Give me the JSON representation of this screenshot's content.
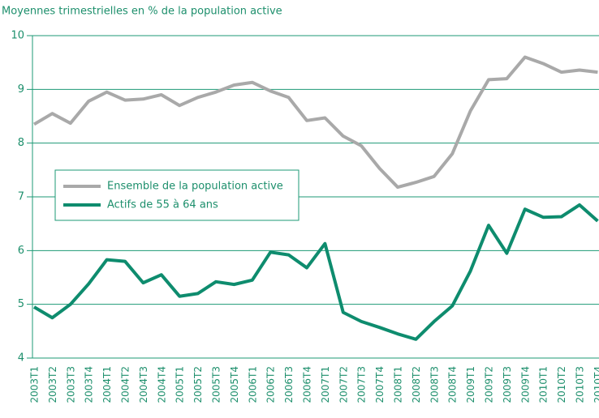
{
  "chart_data": {
    "type": "line",
    "title": "Moyennes trimestrielles en % de la population active",
    "categories": [
      "2003T1",
      "2003T2",
      "2003T3",
      "2003T4",
      "2004T1",
      "2004T2",
      "2004T3",
      "2004T4",
      "2005T1",
      "2005T2",
      "2005T3",
      "2005T4",
      "2006T1",
      "2006T2",
      "2006T3",
      "2006T4",
      "2007T1",
      "2007T2",
      "2007T3",
      "2007T4",
      "2008T1",
      "2008T2",
      "2008T3",
      "2008T4",
      "2009T1",
      "2009T2",
      "2009T3",
      "2009T4",
      "2010T1",
      "2010T2",
      "2010T3",
      "2010T4"
    ],
    "series": [
      {
        "name": "Ensemble de la population active",
        "color": "#a9a9a9",
        "values": [
          8.35,
          8.55,
          8.37,
          8.78,
          8.95,
          8.8,
          8.82,
          8.9,
          8.7,
          8.85,
          8.95,
          9.08,
          9.13,
          8.97,
          8.85,
          8.42,
          8.47,
          8.13,
          7.95,
          7.53,
          7.18,
          7.27,
          7.38,
          7.8,
          8.6,
          9.18,
          9.2,
          9.6,
          9.48,
          9.32,
          9.36,
          9.32
        ]
      },
      {
        "name": "Actifs de 55 à 64 ans",
        "color": "#0e8c6e",
        "values": [
          4.95,
          4.75,
          5.0,
          5.38,
          5.83,
          5.8,
          5.4,
          5.55,
          5.15,
          5.2,
          5.42,
          5.37,
          5.45,
          5.97,
          5.92,
          5.68,
          6.13,
          4.85,
          4.68,
          4.57,
          4.45,
          4.35,
          4.68,
          4.97,
          5.62,
          6.47,
          5.95,
          6.77,
          6.62,
          6.63,
          6.85,
          6.55
        ]
      }
    ],
    "ylim": [
      4,
      10
    ],
    "yticks": [
      4,
      5,
      6,
      7,
      8,
      9,
      10
    ],
    "grid": true,
    "legend": "left"
  }
}
